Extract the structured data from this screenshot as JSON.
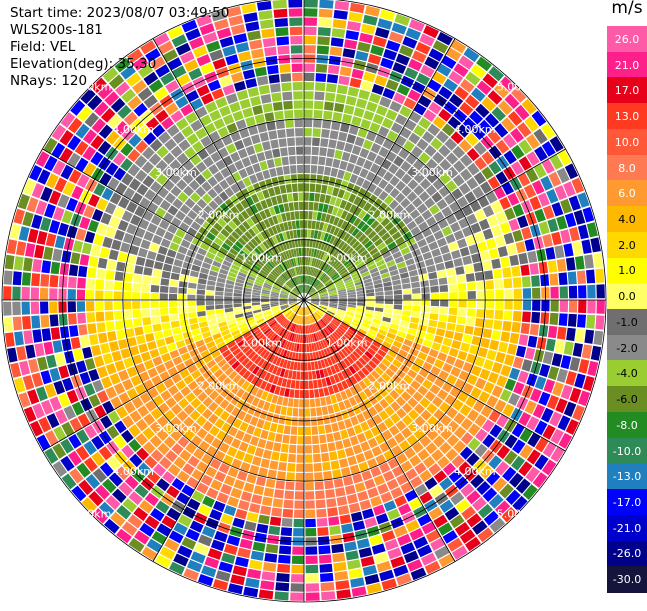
{
  "header": {
    "start_time": "Start time: 2023/08/07 03:49:50",
    "site": "WLS200s-181",
    "field": "Field: VEL",
    "elevation": "Elevation(deg): 35.30",
    "nrays": "NRays: 120"
  },
  "chart_data": {
    "type": "polar-ppi",
    "field": "VEL",
    "units": "m/s",
    "nrays": 120,
    "elevation_deg": 35.3,
    "max_range_km": 5.0,
    "range_rings_km": [
      1,
      2,
      3,
      4,
      5
    ],
    "spoke_angles_deg": [
      0,
      30,
      60,
      90,
      120,
      150,
      180,
      210,
      240,
      270,
      300,
      330
    ],
    "ring_labels": [
      "1.00km",
      "2.00km",
      "3.00km",
      "4.00km",
      "5.00km"
    ],
    "colorbar": {
      "unit": "m/s",
      "tick_labels": [
        "26.0",
        "21.0",
        "17.0",
        "13.0",
        "10.0",
        "8.0",
        "6.0",
        "4.0",
        "2.0",
        "1.0",
        "0.0",
        "-1.0",
        "-2.0",
        "-4.0",
        "-6.0",
        "-8.0",
        "-10.0",
        "-13.0",
        "-17.0",
        "-21.0",
        "-26.0",
        "-30.0"
      ],
      "colors": [
        "#ff5aa8",
        "#ff1f8a",
        "#e8001a",
        "#ff3a20",
        "#ff5838",
        "#ff7a52",
        "#ff9a30",
        "#ffb800",
        "#ffd800",
        "#ffff00",
        "#ffff66",
        "#6f6f6f",
        "#8a8a8a",
        "#9acd32",
        "#6b8e23",
        "#228b22",
        "#2e8b57",
        "#1f7fbf",
        "#0000ff",
        "#0000cd",
        "#00008b",
        "#14143c"
      ]
    },
    "pattern_regions": [
      {
        "description_key": "near_north",
        "from_az": 300,
        "to_az": 60,
        "r0": 0.3,
        "r1": 2.0,
        "value": -7.0
      },
      {
        "description_key": "near_south",
        "from_az": 120,
        "to_az": 240,
        "r0": 0.3,
        "r1": 1.6,
        "value": 12.0
      },
      {
        "description_key": "mid_north",
        "from_az": 290,
        "to_az": 70,
        "r0": 2.0,
        "r1": 3.0,
        "value": -3.0
      },
      {
        "description_key": "mid_south",
        "from_az": 110,
        "to_az": 250,
        "r0": 1.6,
        "r1": 3.0,
        "value": 4.5
      }
    ]
  }
}
